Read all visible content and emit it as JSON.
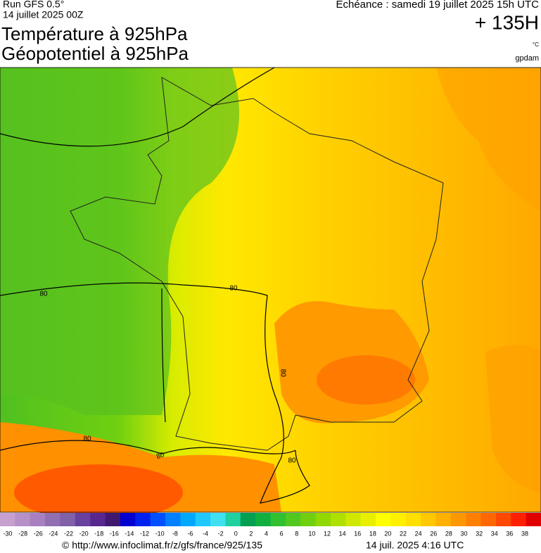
{
  "header": {
    "run": "Run GFS 0.5°",
    "date": "14 juillet 2025 00Z",
    "title1": "Température à 925hPa",
    "title2": "Géopotentiel à 925hPa",
    "echeance": "Echéance : samedi 19 juillet 2025 15h UTC",
    "lead": "+ 135H",
    "unit_temp": "°C",
    "unit_geo": "gpdam"
  },
  "map": {
    "contour_labels": [
      "80",
      "80",
      "80",
      "80",
      "80",
      "80"
    ]
  },
  "colorbar": {
    "ticks": [
      -30,
      -28,
      -26,
      -24,
      -22,
      -20,
      -18,
      -16,
      -14,
      -12,
      -10,
      -8,
      -6,
      -4,
      -2,
      0,
      2,
      4,
      6,
      8,
      10,
      12,
      14,
      16,
      18,
      20,
      22,
      24,
      26,
      28,
      30,
      32,
      34,
      36,
      38
    ],
    "colors": [
      "#c8a0d0",
      "#b890c8",
      "#a880c0",
      "#9070b0",
      "#8060a8",
      "#6840a0",
      "#582890",
      "#401870",
      "#0000d0",
      "#0020f0",
      "#0050ff",
      "#0080ff",
      "#00a8ff",
      "#20c8ff",
      "#40e0f0",
      "#20d0a0",
      "#00a050",
      "#10b040",
      "#30c030",
      "#50c820",
      "#70d010",
      "#90d800",
      "#b0e000",
      "#d0e800",
      "#e8f000",
      "#ffff00",
      "#fff000",
      "#ffe000",
      "#ffc800",
      "#ffb000",
      "#ff9800",
      "#ff8000",
      "#ff6800",
      "#ff4800",
      "#ff2000",
      "#e00000"
    ]
  },
  "footer": {
    "source": "© http://www.infoclimat.fr/z/gfs/france/925/135",
    "timestamp": "14 juil. 2025  4:16 UTC"
  }
}
